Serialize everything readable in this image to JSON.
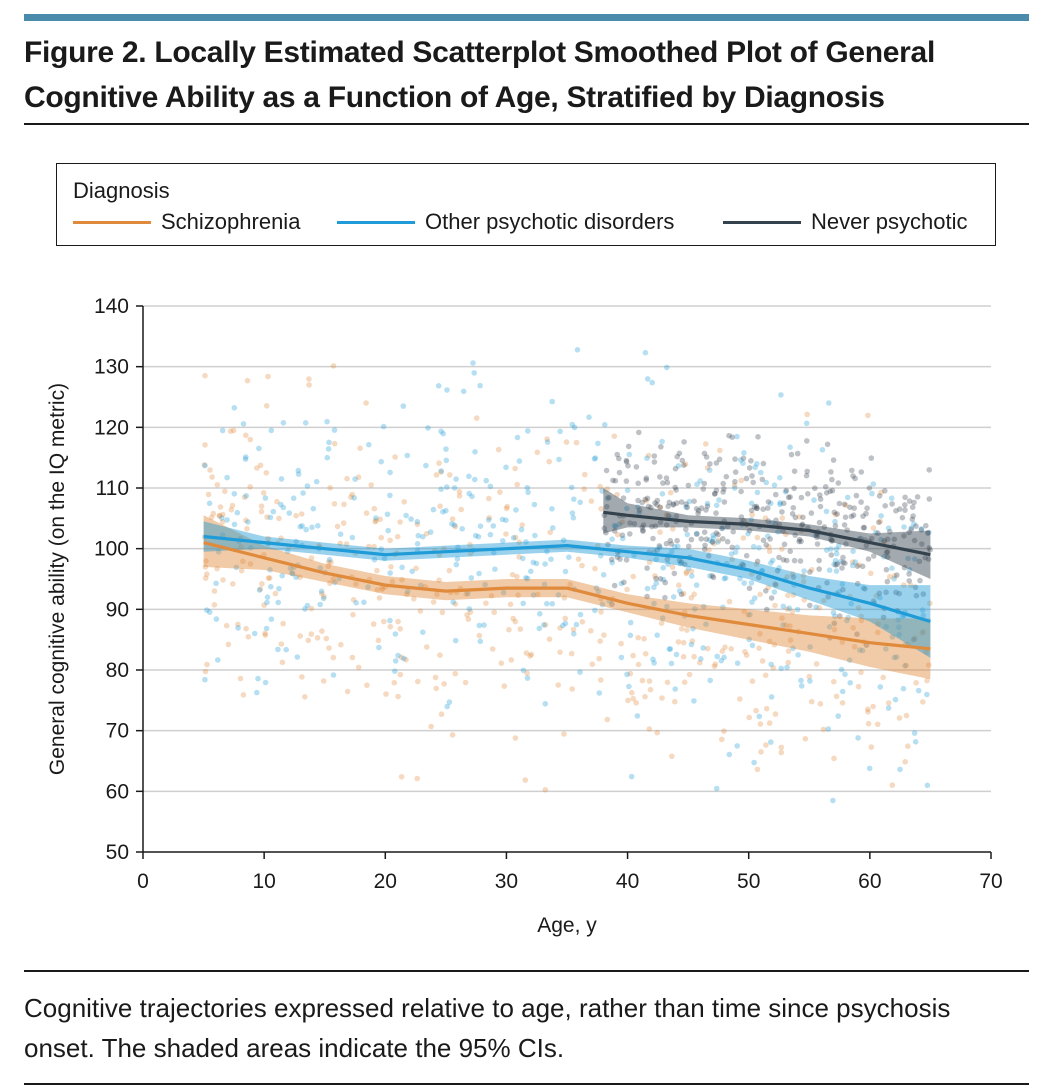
{
  "figure": {
    "title": "Figure 2. Locally Estimated Scatterplot Smoothed Plot of General Cognitive Ability as a Function of Age, Stratified by Diagnosis",
    "caption": "Cognitive trajectories expressed relative to age, rather than time since psychosis onset. The shaded areas indicate the 95% CIs.",
    "accent_color": "#4a8aab"
  },
  "chart_data": {
    "type": "scatter",
    "title": "Figure 2. Locally Estimated Scatterplot Smoothed Plot of General Cognitive Ability as a Function of Age, Stratified by Diagnosis",
    "xlabel": "Age, y",
    "ylabel": "General cognitive ability (on the IQ metric)",
    "xlim": [
      0,
      70
    ],
    "ylim": [
      50,
      140
    ],
    "xticks": [
      0,
      10,
      20,
      30,
      40,
      50,
      60,
      70
    ],
    "yticks": [
      50,
      60,
      70,
      80,
      90,
      100,
      110,
      120,
      130,
      140
    ],
    "grid": "horizontal",
    "legend": {
      "title": "Diagnosis",
      "placement": "top"
    },
    "series": [
      {
        "name": "Schizophrenia",
        "color": "#e08a3c",
        "x_range": [
          5,
          65
        ],
        "point_count": 500,
        "smooth": {
          "x": [
            5,
            10,
            15,
            20,
            25,
            30,
            35,
            40,
            45,
            50,
            55,
            60,
            65
          ],
          "y": [
            101,
            98.5,
            96,
            94,
            93,
            93.5,
            93.5,
            91,
            89,
            87.5,
            86,
            84.5,
            83.5
          ],
          "lower": [
            97,
            96.5,
            94.5,
            92.5,
            91.5,
            92,
            92,
            89.5,
            87,
            85,
            83,
            80.5,
            78.5
          ],
          "upper": [
            105.5,
            100.5,
            97.5,
            95.5,
            94.5,
            95,
            95,
            92.5,
            91,
            90,
            89,
            88.5,
            88.5
          ]
        }
      },
      {
        "name": "Other psychotic disorders",
        "color": "#1f9bd7",
        "x_range": [
          5,
          65
        ],
        "point_count": 520,
        "smooth": {
          "x": [
            5,
            10,
            15,
            20,
            25,
            30,
            35,
            40,
            45,
            50,
            55,
            60,
            65
          ],
          "y": [
            102,
            101,
            100,
            99,
            99.5,
            100,
            100.5,
            99.5,
            98.5,
            96.5,
            93.5,
            91,
            88
          ],
          "lower": [
            99.5,
            100,
            99,
            98,
            98.5,
            99,
            99.5,
            98.5,
            97,
            95,
            91.5,
            88,
            82
          ],
          "upper": [
            104.5,
            102,
            101,
            100,
            100.5,
            101,
            101.5,
            100.5,
            100,
            98,
            95.5,
            94,
            94
          ]
        }
      },
      {
        "name": "Never psychotic",
        "color": "#34424d",
        "x_range": [
          38,
          65
        ],
        "point_count": 380,
        "smooth": {
          "x": [
            38,
            40,
            45,
            50,
            55,
            60,
            65
          ],
          "y": [
            106,
            105.5,
            104.5,
            104,
            103,
            101,
            99
          ],
          "lower": [
            102.5,
            103.5,
            103.5,
            103,
            102,
            99.5,
            95
          ],
          "upper": [
            110,
            107.5,
            105.5,
            105,
            104,
            102.5,
            103
          ]
        }
      }
    ]
  }
}
